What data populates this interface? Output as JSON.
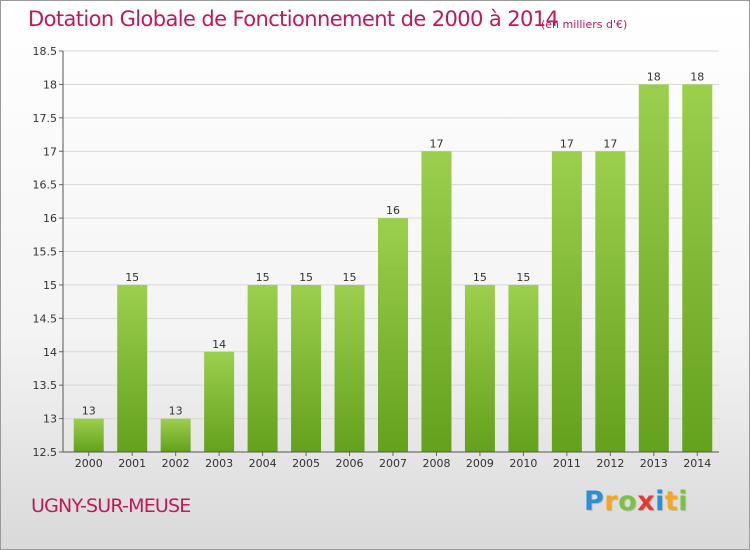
{
  "header": {
    "title": "Dotation Globale de Fonctionnement de 2000 à 2014",
    "unit": "(en milliers d'€)"
  },
  "footer": {
    "commune": "UGNY-SUR-MEUSE",
    "logo_text": "Proxiti",
    "logo_letters": [
      {
        "char": "P",
        "color": "#2b8fd6"
      },
      {
        "char": "r",
        "color": "#f5a623"
      },
      {
        "char": "o",
        "color": "#7cc242"
      },
      {
        "char": "x",
        "color": "#e53935"
      },
      {
        "char": "i",
        "color": "#2b8fd6"
      },
      {
        "char": "t",
        "color": "#f5a623"
      },
      {
        "char": "i",
        "color": "#7cc242"
      }
    ]
  },
  "colors": {
    "accent": "#c2185b",
    "bar_top": "#9ccf4e",
    "bar_bottom": "#64a11c",
    "grid": "#d8d8d8"
  },
  "chart_data": {
    "type": "bar",
    "title": "Dotation Globale de Fonctionnement de 2000 à 2014",
    "subtitle": "(en milliers d'€)",
    "xlabel": "",
    "ylabel": "",
    "categories": [
      "2000",
      "2001",
      "2002",
      "2003",
      "2004",
      "2005",
      "2006",
      "2007",
      "2008",
      "2009",
      "2010",
      "2011",
      "2012",
      "2013",
      "2014"
    ],
    "values": [
      13,
      15,
      13,
      14,
      15,
      15,
      15,
      16,
      17,
      15,
      15,
      17,
      17,
      18,
      18
    ],
    "data_labels": [
      "13",
      "15",
      "13",
      "14",
      "15",
      "15",
      "15",
      "16",
      "17",
      "15",
      "15",
      "17",
      "17",
      "18",
      "18"
    ],
    "ylim": [
      12.5,
      18.5
    ],
    "yticks": [
      "12.5",
      "13",
      "13.5",
      "14",
      "14.5",
      "15",
      "15.5",
      "16",
      "16.5",
      "17",
      "17.5",
      "18",
      "18.5"
    ],
    "grid": true
  }
}
